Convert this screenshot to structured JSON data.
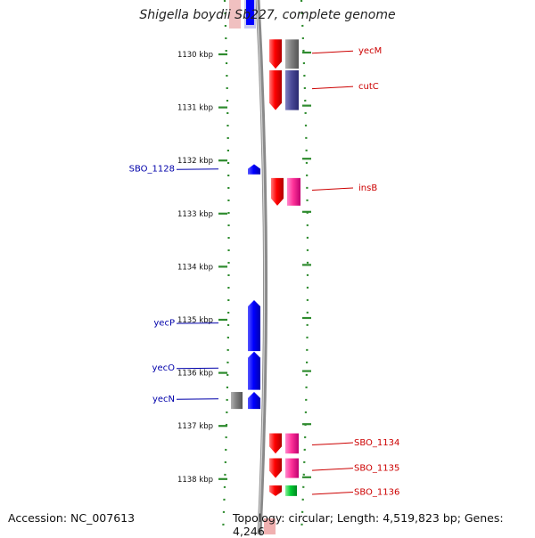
{
  "title": "Shigella boydii Sb227, complete genome",
  "footer": {
    "accession": "Accession: NC_007613",
    "topology": "Topology: circular; Length: 4,519,823 bp; Genes: 4,246"
  },
  "colors": {
    "forward_cds": "#ff0000",
    "reverse_cds": "#0000ff",
    "trna_like": "#00cc33",
    "pink_feature": "#ff3399",
    "grey_feature": "#808080",
    "purple_feature": "#4b4b99",
    "label_forward": "#cc0000",
    "label_reverse": "#0000aa",
    "tick_green": "#2e8b2e"
  },
  "ruler": {
    "unit": "kbp",
    "ticks": [
      {
        "kbp": 1130,
        "label": "1130 kbp"
      },
      {
        "kbp": 1131,
        "label": "1131 kbp"
      },
      {
        "kbp": 1132,
        "label": "1132 kbp"
      },
      {
        "kbp": 1133,
        "label": "1133 kbp"
      },
      {
        "kbp": 1134,
        "label": "1134 kbp"
      },
      {
        "kbp": 1135,
        "label": "1135 kbp"
      },
      {
        "kbp": 1136,
        "label": "1136 kbp"
      },
      {
        "kbp": 1137,
        "label": "1137 kbp"
      },
      {
        "kbp": 1138,
        "label": "1138 kbp"
      }
    ]
  },
  "features": {
    "forward": [
      {
        "name": "yecM",
        "start_kbp": 1129.72,
        "end_kbp": 1130.27,
        "type": "cds"
      },
      {
        "name": "cutC",
        "start_kbp": 1130.3,
        "end_kbp": 1131.05,
        "type": "cds"
      },
      {
        "name": "insB",
        "start_kbp": 1132.33,
        "end_kbp": 1132.85,
        "type": "cds"
      },
      {
        "name": "SBO_1134",
        "start_kbp": 1137.14,
        "end_kbp": 1137.52,
        "type": "cds"
      },
      {
        "name": "SBO_1135",
        "start_kbp": 1137.61,
        "end_kbp": 1137.98,
        "type": "cds"
      },
      {
        "name": "SBO_1136",
        "start_kbp": 1138.12,
        "end_kbp": 1138.32,
        "type": "trna"
      }
    ],
    "reverse": [
      {
        "name": "SBO_1128",
        "start_kbp": 1132.07,
        "end_kbp": 1132.26
      },
      {
        "name": "yecP",
        "start_kbp": 1134.63,
        "end_kbp": 1135.59
      },
      {
        "name": "yecO",
        "start_kbp": 1135.6,
        "end_kbp": 1136.32
      },
      {
        "name": "yecN",
        "start_kbp": 1136.36,
        "end_kbp": 1136.68
      }
    ]
  },
  "labels": {
    "forward": [
      {
        "text": "yecM",
        "kbp": 1129.97
      },
      {
        "text": "cutC",
        "kbp": 1130.64
      },
      {
        "text": "insB",
        "kbp": 1132.55
      },
      {
        "text": "SBO_1134",
        "kbp": 1137.35
      },
      {
        "text": "SBO_1135",
        "kbp": 1137.83
      },
      {
        "text": "SBO_1136",
        "kbp": 1138.28
      }
    ],
    "reverse": [
      {
        "text": "SBO_1128",
        "kbp": 1132.16
      },
      {
        "text": "yecP",
        "kbp": 1135.06
      },
      {
        "text": "yecO",
        "kbp": 1135.91
      },
      {
        "text": "yecN",
        "kbp": 1136.49
      }
    ]
  }
}
